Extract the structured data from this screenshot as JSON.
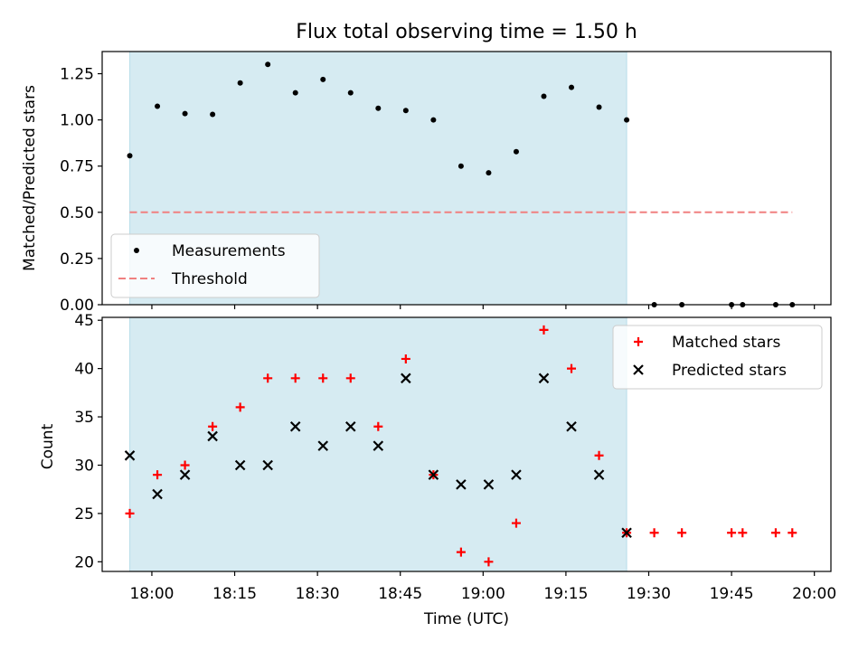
{
  "chart_data": [
    {
      "type": "scatter",
      "title": "Flux total observing time = 1.50 h",
      "xlabel": "",
      "ylabel": "Matched/Predicted stars",
      "ylim": [
        0,
        1.37
      ],
      "yticks": [
        "0.00",
        "0.25",
        "0.50",
        "0.75",
        "1.00",
        "1.25"
      ],
      "xlim": [
        "17:51",
        "20:03"
      ],
      "shaded_interval": [
        "17:56",
        "19:26"
      ],
      "shade_color": "#add8e6",
      "legend_position": "lower-left",
      "series": [
        {
          "name": "Measurements",
          "marker": "dot",
          "color": "#000000",
          "x": [
            "17:56",
            "18:01",
            "18:06",
            "18:11",
            "18:16",
            "18:21",
            "18:26",
            "18:31",
            "18:36",
            "18:41",
            "18:46",
            "18:51",
            "18:56",
            "19:01",
            "19:06",
            "19:11",
            "19:16",
            "19:21",
            "19:26",
            "19:31",
            "19:36",
            "19:45",
            "19:47",
            "19:53",
            "19:56"
          ],
          "y": [
            0.806,
            1.074,
            1.034,
            1.03,
            1.2,
            1.3,
            1.147,
            1.219,
            1.147,
            1.063,
            1.051,
            1.0,
            0.75,
            0.714,
            0.828,
            1.128,
            1.176,
            1.069,
            1.0,
            0,
            0,
            0,
            0,
            0,
            0
          ]
        },
        {
          "name": "Threshold",
          "marker": "dashed-line",
          "color": "#f08080",
          "x": [
            "17:56",
            "19:56"
          ],
          "y": [
            0.5,
            0.5
          ]
        }
      ]
    },
    {
      "type": "scatter",
      "title": "",
      "xlabel": "Time (UTC)",
      "ylabel": "Count",
      "ylim": [
        19,
        45.3
      ],
      "yticks": [
        "20",
        "25",
        "30",
        "35",
        "40",
        "45"
      ],
      "xticks": [
        "18:00",
        "18:15",
        "18:30",
        "18:45",
        "19:00",
        "19:15",
        "19:30",
        "19:45",
        "20:00"
      ],
      "xlim": [
        "17:51",
        "20:03"
      ],
      "shaded_interval": [
        "17:56",
        "19:26"
      ],
      "shade_color": "#add8e6",
      "legend_position": "top-right",
      "series": [
        {
          "name": "Matched stars",
          "marker": "plus",
          "color": "#ff0000",
          "x": [
            "17:56",
            "18:01",
            "18:06",
            "18:11",
            "18:16",
            "18:21",
            "18:26",
            "18:31",
            "18:36",
            "18:41",
            "18:46",
            "18:51",
            "18:56",
            "19:01",
            "19:06",
            "19:11",
            "19:16",
            "19:21",
            "19:26",
            "19:31",
            "19:36",
            "19:45",
            "19:47",
            "19:53",
            "19:56"
          ],
          "y": [
            25,
            29,
            30,
            34,
            36,
            39,
            39,
            39,
            39,
            34,
            41,
            29,
            21,
            20,
            24,
            44,
            40,
            31,
            23,
            23,
            23,
            23,
            23,
            23,
            23
          ]
        },
        {
          "name": "Predicted stars",
          "marker": "x",
          "color": "#000000",
          "x": [
            "17:56",
            "18:01",
            "18:06",
            "18:11",
            "18:16",
            "18:21",
            "18:26",
            "18:31",
            "18:36",
            "18:41",
            "18:46",
            "18:51",
            "18:56",
            "19:01",
            "19:06",
            "19:11",
            "19:16",
            "19:21",
            "19:26"
          ],
          "y": [
            31,
            27,
            29,
            33,
            30,
            30,
            34,
            32,
            34,
            32,
            39,
            29,
            28,
            28,
            29,
            39,
            34,
            29,
            23
          ]
        }
      ]
    }
  ]
}
